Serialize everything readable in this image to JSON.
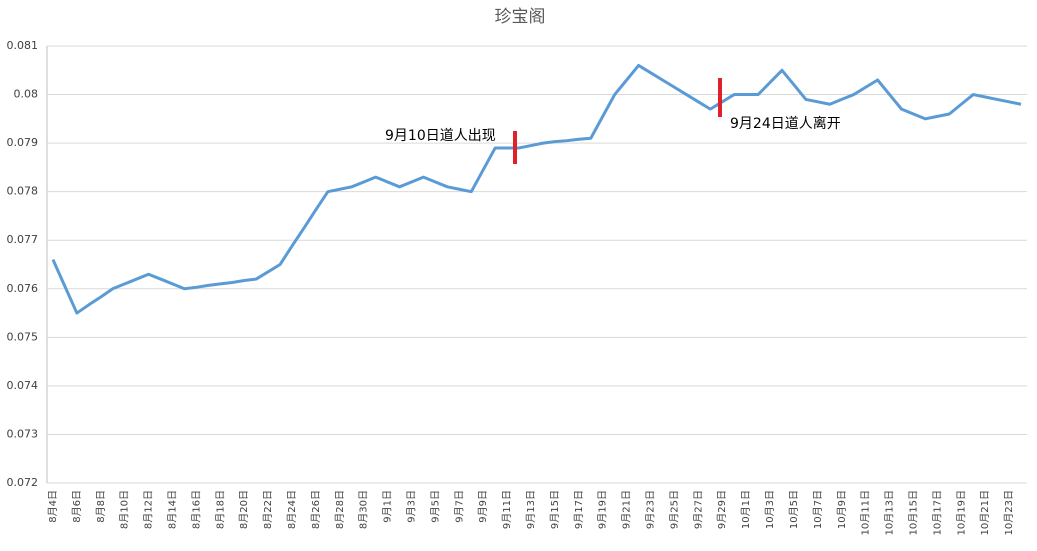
{
  "chart_data": {
    "type": "line",
    "title": "珍宝阁",
    "categories": [
      "8月4日",
      null,
      "8月6日",
      null,
      "8月8日",
      null,
      "8月10日",
      null,
      "8月12日",
      null,
      "8月14日",
      null,
      "8月16日",
      null,
      "8月18日",
      null,
      "8月20日",
      null,
      "8月22日",
      null,
      "8月24日",
      null,
      "8月26日",
      null,
      "8月28日",
      null,
      "8月30日",
      null,
      "9月1日",
      null,
      "9月3日",
      null,
      "9月5日",
      null,
      "9月7日",
      null,
      "9月9日",
      null,
      "9月11日",
      null,
      "9月13日",
      null,
      "9月15日",
      null,
      "9月17日",
      null,
      "9月19日",
      null,
      "9月21日",
      null,
      "9月23日",
      null,
      "9月25日",
      null,
      "9月27日",
      null,
      "9月29日",
      null,
      "10月1日",
      null,
      "10月3日",
      null,
      "10月5日",
      null,
      "10月7日",
      null,
      "10月9日",
      null,
      "10月11日",
      null,
      "10月13日",
      null,
      "10月15日",
      null,
      "10月17日",
      null,
      "10月19日",
      null,
      "10月21日",
      null,
      "10月23日",
      null
    ],
    "series": [
      {
        "name": "珍宝阁",
        "color": "#5b9bd5",
        "values": [
          0.0766,
          0.07605,
          0.0755,
          0.07567,
          0.07583,
          0.076,
          0.0761,
          0.0762,
          0.0763,
          0.0762,
          0.0761,
          0.076,
          0.07603,
          0.07607,
          0.0761,
          0.07613,
          0.07617,
          0.0762,
          0.07635,
          0.0765,
          0.07688,
          0.07725,
          0.07763,
          0.078,
          0.07805,
          0.0781,
          0.0782,
          0.0783,
          0.0782,
          0.0781,
          0.0782,
          0.0783,
          0.0782,
          0.0781,
          0.07805,
          0.078,
          0.07845,
          0.0789,
          0.0789,
          0.0789,
          0.07895,
          0.079,
          0.07903,
          0.07905,
          0.07908,
          0.0791,
          0.07955,
          0.08,
          0.0803,
          0.0806,
          0.08045,
          0.0803,
          0.08015,
          0.08,
          0.07985,
          0.0797,
          0.07985,
          0.08,
          0.08,
          0.08,
          0.08025,
          0.0805,
          0.0802,
          0.0799,
          0.07985,
          0.0798,
          0.0799,
          0.08,
          0.08015,
          0.0803,
          0.08,
          0.0797,
          0.0796,
          0.0795,
          0.07955,
          0.0796,
          0.0798,
          0.08,
          0.07995,
          0.0799,
          0.07985,
          0.0798
        ]
      }
    ],
    "ylim": [
      0.072,
      0.081
    ],
    "yticks": [
      0.072,
      0.073,
      0.074,
      0.075,
      0.076,
      0.077,
      0.078,
      0.079,
      0.08,
      0.081
    ],
    "grid": true,
    "annotations": [
      "9月10日道人出现",
      "9月24日道人离开"
    ]
  }
}
